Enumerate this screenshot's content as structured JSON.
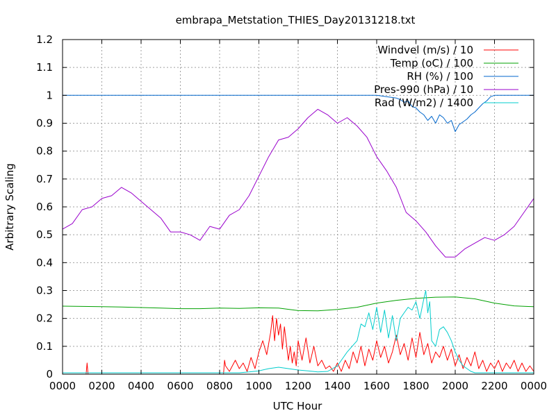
{
  "chart_data": {
    "type": "line",
    "title": "embrapa_Metstation_THIES_Day20131218.txt",
    "xlabel": "UTC Hour",
    "ylabel": "Arbitrary Scaling",
    "xlim": [
      0,
      2400
    ],
    "ylim": [
      0,
      1.2
    ],
    "grid": true,
    "legend_position": "top-right",
    "x_tick_labels": [
      "0000",
      "0200",
      "0400",
      "0600",
      "0800",
      "1000",
      "1200",
      "1400",
      "1600",
      "1800",
      "2000",
      "2200",
      "0000"
    ],
    "y_tick_labels": [
      "0",
      "0.1",
      "0.2",
      "0.3",
      "0.4",
      "0.5",
      "0.6",
      "0.7",
      "0.8",
      "0.9",
      "1",
      "1.1",
      "1.2"
    ],
    "series": [
      {
        "name": "Windvel (m/s) / 10",
        "color": "#ff0000",
        "x": [
          0,
          100,
          120,
          125,
          130,
          140,
          200,
          400,
          600,
          800,
          820,
          825,
          830,
          850,
          880,
          900,
          920,
          940,
          960,
          980,
          1000,
          1020,
          1040,
          1060,
          1070,
          1080,
          1090,
          1100,
          1110,
          1120,
          1130,
          1140,
          1150,
          1160,
          1170,
          1180,
          1190,
          1200,
          1220,
          1240,
          1260,
          1280,
          1300,
          1320,
          1340,
          1360,
          1380,
          1400,
          1420,
          1440,
          1460,
          1480,
          1500,
          1520,
          1540,
          1560,
          1580,
          1600,
          1620,
          1640,
          1660,
          1680,
          1700,
          1720,
          1740,
          1760,
          1780,
          1800,
          1820,
          1840,
          1860,
          1880,
          1900,
          1920,
          1940,
          1960,
          1980,
          2000,
          2020,
          2040,
          2060,
          2080,
          2100,
          2120,
          2140,
          2160,
          2180,
          2200,
          2220,
          2240,
          2260,
          2280,
          2300,
          2320,
          2340,
          2360,
          2380,
          2400
        ],
        "y": [
          0,
          0,
          0,
          0.04,
          0,
          0,
          0,
          0,
          0,
          0,
          0,
          0.05,
          0.03,
          0.01,
          0.05,
          0.02,
          0.04,
          0.01,
          0.06,
          0.02,
          0.08,
          0.12,
          0.07,
          0.15,
          0.21,
          0.12,
          0.2,
          0.14,
          0.18,
          0.09,
          0.17,
          0.11,
          0.05,
          0.1,
          0.04,
          0.08,
          0.03,
          0.12,
          0.05,
          0.13,
          0.04,
          0.1,
          0.03,
          0.05,
          0.02,
          0.03,
          0.01,
          0.04,
          0.01,
          0.05,
          0.02,
          0.08,
          0.04,
          0.1,
          0.03,
          0.09,
          0.05,
          0.12,
          0.06,
          0.1,
          0.04,
          0.08,
          0.14,
          0.07,
          0.11,
          0.05,
          0.13,
          0.06,
          0.15,
          0.07,
          0.11,
          0.04,
          0.08,
          0.06,
          0.1,
          0.05,
          0.09,
          0.03,
          0.07,
          0.02,
          0.06,
          0.03,
          0.08,
          0.02,
          0.05,
          0.01,
          0.04,
          0.02,
          0.05,
          0.01,
          0.04,
          0.02,
          0.05,
          0.01,
          0.04,
          0.01,
          0.03,
          0.01
        ]
      },
      {
        "name": "Temp (oC) / 100",
        "color": "#00a000",
        "x": [
          0,
          100,
          200,
          300,
          400,
          500,
          600,
          700,
          800,
          900,
          1000,
          1100,
          1200,
          1300,
          1400,
          1500,
          1600,
          1700,
          1800,
          1900,
          2000,
          2100,
          2200,
          2300,
          2400
        ],
        "y": [
          0.244,
          0.243,
          0.242,
          0.241,
          0.239,
          0.237,
          0.235,
          0.235,
          0.237,
          0.236,
          0.238,
          0.237,
          0.228,
          0.227,
          0.232,
          0.24,
          0.255,
          0.265,
          0.272,
          0.276,
          0.277,
          0.27,
          0.255,
          0.245,
          0.242
        ]
      },
      {
        "name": "RH (%) / 100",
        "color": "#0066cc",
        "x": [
          0,
          1600,
          1650,
          1700,
          1720,
          1740,
          1760,
          1780,
          1800,
          1820,
          1840,
          1860,
          1880,
          1900,
          1920,
          1940,
          1960,
          1980,
          2000,
          2020,
          2040,
          2060,
          2080,
          2100,
          2120,
          2140,
          2160,
          2180,
          2200,
          2300,
          2400
        ],
        "y": [
          1,
          1,
          0.995,
          0.99,
          0.985,
          0.975,
          0.98,
          0.96,
          0.955,
          0.94,
          0.93,
          0.91,
          0.925,
          0.9,
          0.93,
          0.92,
          0.9,
          0.91,
          0.87,
          0.895,
          0.905,
          0.915,
          0.93,
          0.94,
          0.955,
          0.97,
          0.98,
          0.995,
          1,
          1,
          1
        ]
      },
      {
        "name": "Pres-990 (hPa) / 10",
        "color": "#9900cc",
        "x": [
          0,
          50,
          100,
          150,
          200,
          250,
          300,
          350,
          400,
          450,
          500,
          550,
          600,
          650,
          700,
          750,
          800,
          850,
          900,
          950,
          1000,
          1050,
          1100,
          1150,
          1200,
          1250,
          1300,
          1350,
          1400,
          1450,
          1500,
          1550,
          1600,
          1650,
          1700,
          1750,
          1800,
          1850,
          1900,
          1950,
          2000,
          2050,
          2100,
          2150,
          2200,
          2250,
          2300,
          2350,
          2400
        ],
        "y": [
          0.52,
          0.54,
          0.59,
          0.6,
          0.63,
          0.64,
          0.67,
          0.65,
          0.62,
          0.59,
          0.56,
          0.51,
          0.51,
          0.5,
          0.48,
          0.53,
          0.52,
          0.57,
          0.59,
          0.64,
          0.71,
          0.78,
          0.84,
          0.85,
          0.88,
          0.92,
          0.95,
          0.93,
          0.9,
          0.92,
          0.89,
          0.85,
          0.78,
          0.73,
          0.67,
          0.58,
          0.55,
          0.51,
          0.46,
          0.42,
          0.42,
          0.45,
          0.47,
          0.49,
          0.48,
          0.5,
          0.53,
          0.58,
          0.63
        ]
      },
      {
        "name": "Rad (W/m2) / 1400",
        "color": "#00cccc",
        "x": [
          0,
          900,
          950,
          1000,
          1050,
          1100,
          1150,
          1200,
          1250,
          1300,
          1350,
          1400,
          1450,
          1500,
          1520,
          1540,
          1560,
          1580,
          1590,
          1600,
          1620,
          1640,
          1660,
          1680,
          1700,
          1720,
          1740,
          1760,
          1780,
          1800,
          1820,
          1840,
          1850,
          1860,
          1870,
          1880,
          1900,
          1920,
          1940,
          1960,
          1980,
          2000,
          2020,
          2040,
          2060,
          2080,
          2100,
          2150,
          2200,
          2400
        ],
        "y": [
          0.005,
          0.005,
          0.008,
          0.012,
          0.02,
          0.025,
          0.02,
          0.015,
          0.012,
          0.008,
          0.01,
          0.03,
          0.08,
          0.12,
          0.18,
          0.17,
          0.22,
          0.16,
          0.2,
          0.24,
          0.15,
          0.23,
          0.13,
          0.21,
          0.12,
          0.2,
          0.22,
          0.24,
          0.23,
          0.26,
          0.2,
          0.27,
          0.3,
          0.22,
          0.26,
          0.12,
          0.1,
          0.16,
          0.17,
          0.15,
          0.12,
          0.08,
          0.05,
          0.03,
          0.02,
          0.01,
          0.005,
          0.005,
          0.005,
          0.005
        ]
      }
    ]
  }
}
